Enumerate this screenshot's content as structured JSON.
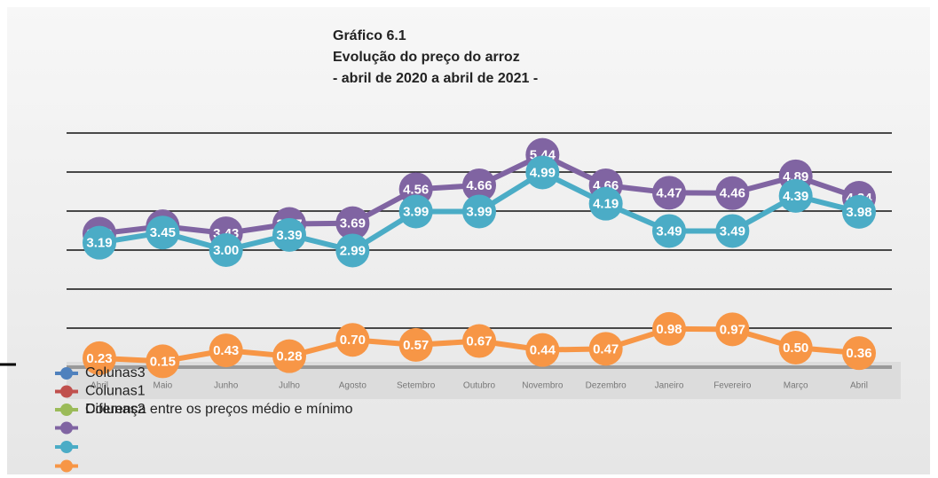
{
  "chart_data": {
    "type": "line",
    "title": "Gráfico 6.1",
    "subtitle": [
      "Evolução do preço do arroz",
      "- abril de 2020 a abril de 2021 -"
    ],
    "categories": [
      "Abril",
      "Maio",
      "Junho",
      "Julho",
      "Agosto",
      "Setembro",
      "Outubro",
      "Novembro",
      "Dezembro",
      "Janeiro",
      "Fevereiro",
      "Março",
      "Abril"
    ],
    "series": [
      {
        "color": "#8064a2",
        "values": [
          3.42,
          3.61,
          3.43,
          3.67,
          3.69,
          4.56,
          4.66,
          5.44,
          4.66,
          4.47,
          4.46,
          4.89,
          4.34
        ],
        "value_labels": [
          "3.42",
          "3.61",
          "3.43",
          "3.67",
          "3.69",
          "4.56",
          "4.66",
          "5.44",
          "4.66",
          "4.47",
          "4.46",
          "4.89",
          "4.34"
        ]
      },
      {
        "color": "#4bacc6",
        "values": [
          3.19,
          3.45,
          3.0,
          3.39,
          2.99,
          3.99,
          3.99,
          4.99,
          4.19,
          3.49,
          3.49,
          4.39,
          3.98
        ],
        "value_labels": [
          "3.19",
          "3.45",
          "3.00",
          "3.39",
          "2.99",
          "3.99",
          "3.99",
          "4.99",
          "4.19",
          "3.49",
          "3.49",
          "4.39",
          "3.98"
        ]
      },
      {
        "color": "#f79646",
        "values": [
          0.23,
          0.15,
          0.43,
          0.28,
          0.7,
          0.57,
          0.67,
          0.44,
          0.47,
          0.98,
          0.97,
          0.5,
          0.36
        ],
        "value_labels": [
          "0.23",
          "0.15",
          "0.43",
          "0.28",
          "0.70",
          "0.57",
          "0.67",
          "0.44",
          "0.47",
          "0.98",
          "0.97",
          "0.50",
          "0.36"
        ]
      }
    ],
    "legend_extra": [
      {
        "name": "Colunas3",
        "color": "#4f81bd"
      },
      {
        "name": "Colunas1",
        "color": "#c0504d"
      },
      {
        "name": "Colunas2",
        "label": "Diferença entre os preços médio e mínimo",
        "color": "#9bbb59"
      }
    ],
    "ylim": [
      0,
      6
    ],
    "yticks": [
      0,
      1,
      2,
      3,
      4,
      5,
      6
    ],
    "grid": true
  }
}
